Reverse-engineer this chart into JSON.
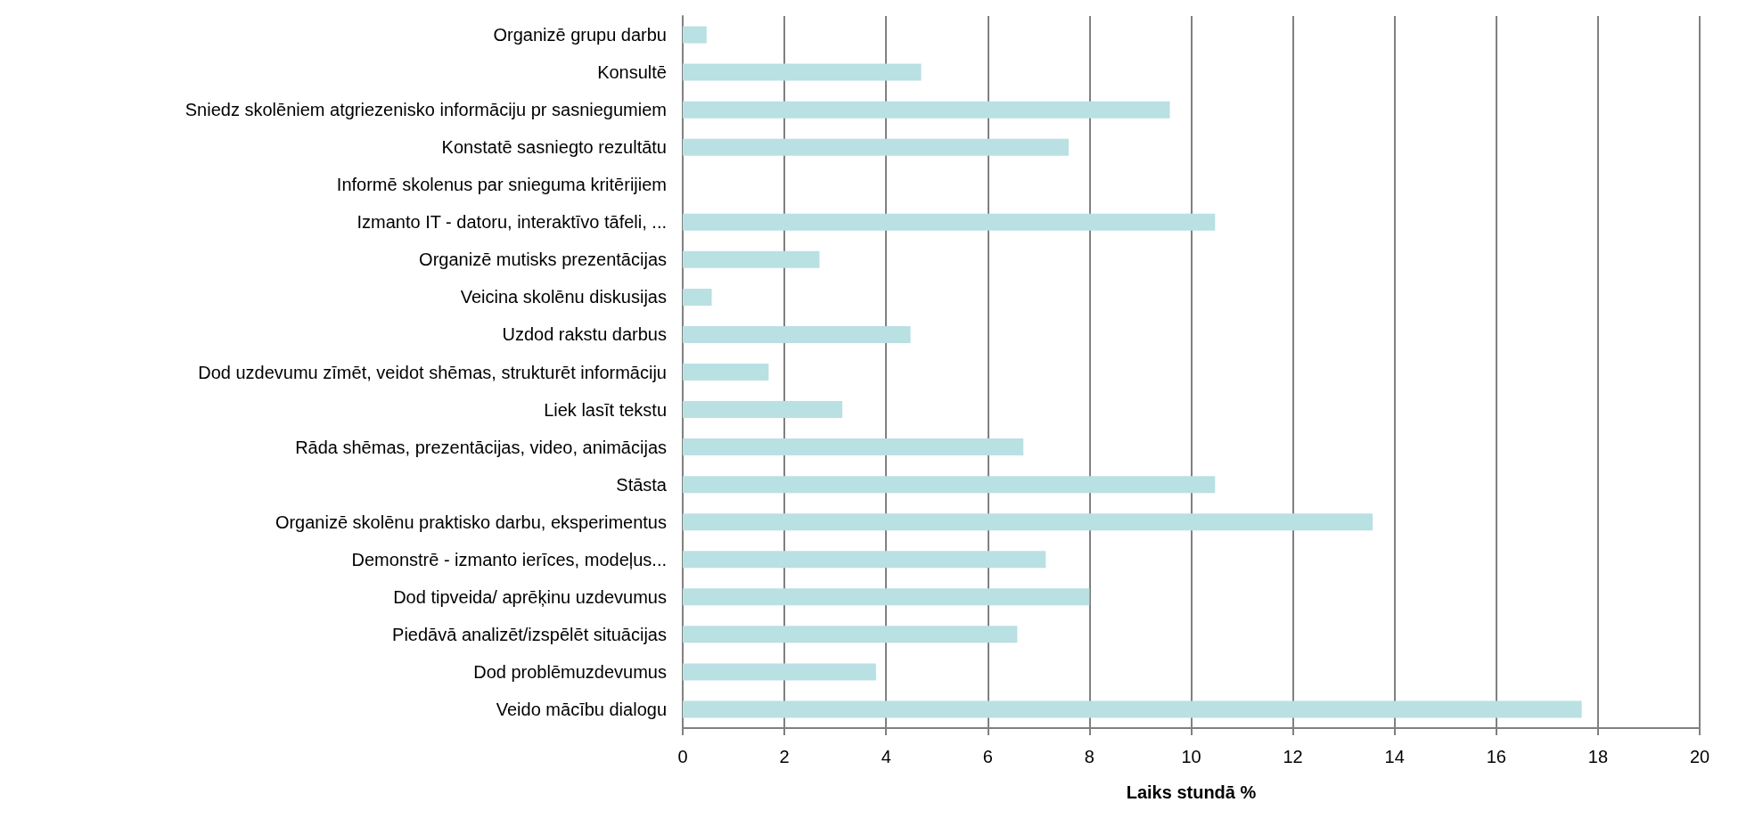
{
  "chart_data": {
    "type": "bar",
    "orientation": "horizontal",
    "xlabel": "Laiks stundā %",
    "categories": [
      "Organizē grupu darbu",
      "Konsultē",
      "Sniedz skolēniem atgriezenisko informāciju pr sasniegumiem",
      "Konstatē sasniegto rezultātu",
      "Informē skolenus par snieguma kritērijiem",
      "Izmanto IT - datoru, interaktīvo tāfeli, ...",
      "Organizē mutisks prezentācijas",
      "Veicina skolēnu diskusijas",
      "Uzdod rakstu darbus",
      "Dod uzdevumu zīmēt, veidot shēmas, strukturēt informāciju",
      "Liek lasīt tekstu",
      "Rāda shēmas, prezentācijas, video, animācijas",
      "Stāsta",
      "Organizē skolēnu praktisko darbu, eksperimentus",
      "Demonstrē - izmanto ierīces, modeļus...",
      "Dod tipveida/ aprēķinu uzdevumus",
      "Piedāvā analizēt/izspēlēt situācijas",
      "Dod problēmuzdevumus",
      "Veido mācību dialogu"
    ],
    "values": [
      0.47,
      4.69,
      9.58,
      7.59,
      null,
      10.47,
      2.69,
      0.57,
      4.48,
      1.69,
      3.14,
      6.7,
      10.47,
      13.57,
      7.14,
      8.0,
      6.58,
      3.8,
      17.68
    ],
    "color": "#b9e0e3",
    "xlim": [
      0,
      20
    ],
    "xticks": [
      0,
      2,
      4,
      6,
      8,
      10,
      12,
      14,
      16,
      18,
      20
    ],
    "grid": "x"
  }
}
